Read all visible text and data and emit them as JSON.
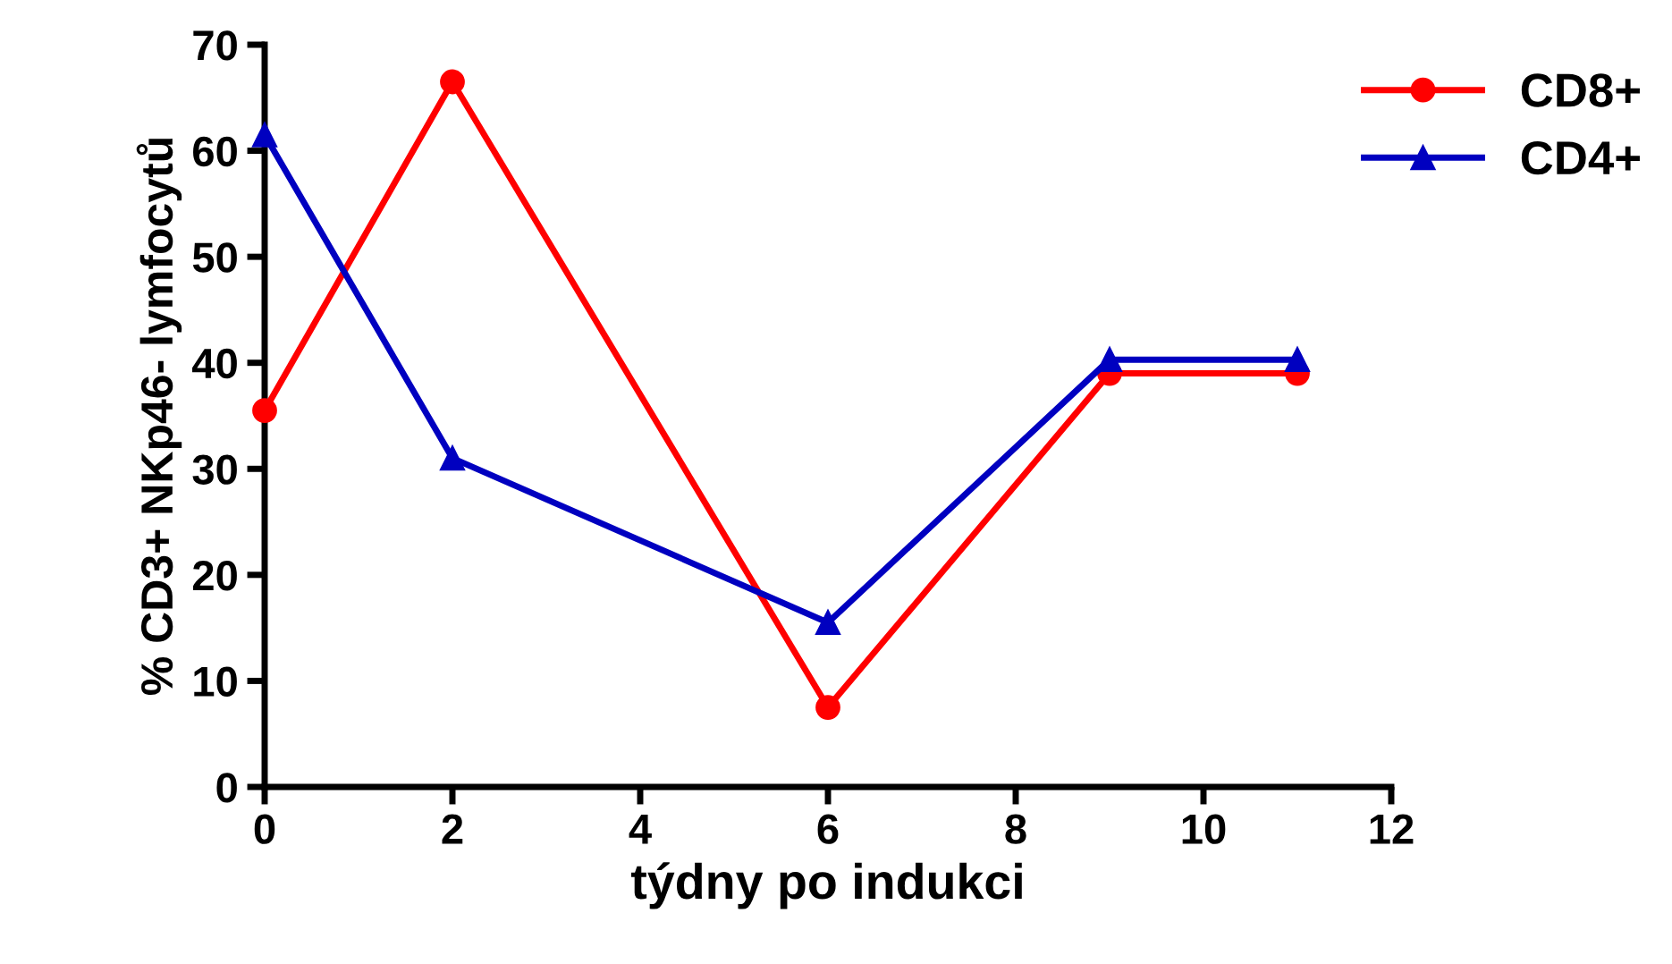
{
  "chart_data": {
    "type": "line",
    "xlabel": "týdny po indukci",
    "ylabel": "% CD3+ NKp46- lymfocytů",
    "x": [
      0,
      2,
      6,
      9,
      11
    ],
    "series": [
      {
        "name": "CD8+",
        "color": "#ff0000",
        "values": [
          35.5,
          66.5,
          7.5,
          39,
          39
        ],
        "marker": "circle"
      },
      {
        "name": "CD4+",
        "color": "#0000c0",
        "values": [
          61.5,
          31,
          15.5,
          40.3,
          40.3
        ],
        "marker": "triangle"
      }
    ],
    "xlim": [
      0,
      12
    ],
    "xticks": [
      0,
      2,
      4,
      6,
      8,
      10,
      12
    ],
    "ylim": [
      0,
      70
    ],
    "yticks": [
      0,
      10,
      20,
      30,
      40,
      50,
      60,
      70
    ],
    "grid": false,
    "legend": "top right",
    "line_style": "solid"
  }
}
